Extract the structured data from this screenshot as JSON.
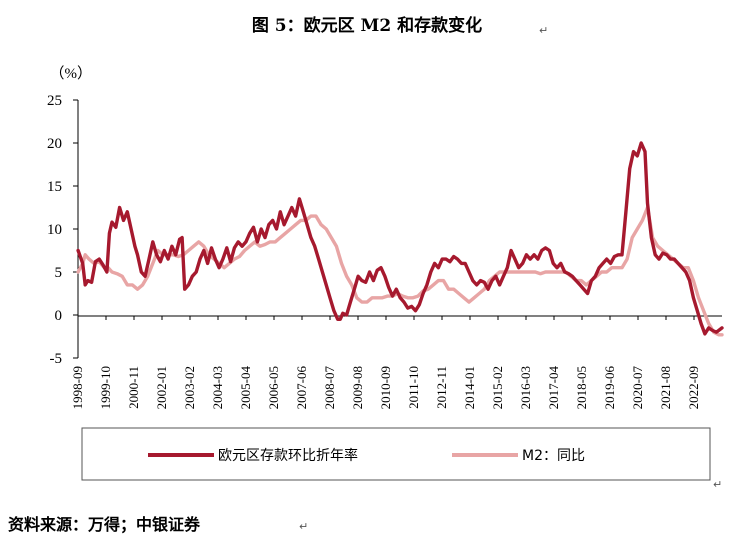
{
  "title": "图 5：欧元区 M2 和存款变化",
  "unit_label": "（%）",
  "source": "资料来源：万得；中银证券",
  "colors": {
    "series1": "#A6192E",
    "series2": "#E8A5A5",
    "axis": "#000000",
    "legend_border": "#555555"
  },
  "chart_data": {
    "type": "line",
    "ylim": [
      -5,
      25
    ],
    "yticks": [
      25,
      20,
      15,
      10,
      5,
      0,
      -5
    ],
    "xlim": [
      1998.667,
      2023.92
    ],
    "xtick_labels": [
      "1998-09",
      "1999-10",
      "2000-11",
      "2002-01",
      "2003-02",
      "2004-03",
      "2005-04",
      "2006-05",
      "2007-06",
      "2008-07",
      "2009-08",
      "2010-09",
      "2011-10",
      "2012-11",
      "2014-01",
      "2015-02",
      "2016-03",
      "2017-04",
      "2018-05",
      "2019-06",
      "2020-07",
      "2021-08",
      "2022-09"
    ],
    "legend_position": "bottom",
    "series": [
      {
        "name": "欧元区存款环比折年率",
        "points": [
          [
            1998.67,
            7.5
          ],
          [
            1998.85,
            6
          ],
          [
            1998.95,
            3.5
          ],
          [
            1999.05,
            4
          ],
          [
            1999.2,
            3.8
          ],
          [
            1999.35,
            6.2
          ],
          [
            1999.5,
            6.5
          ],
          [
            1999.65,
            5.8
          ],
          [
            1999.8,
            5
          ],
          [
            1999.9,
            9.5
          ],
          [
            2000.0,
            10.8
          ],
          [
            2000.15,
            10.2
          ],
          [
            2000.3,
            12.5
          ],
          [
            2000.45,
            11
          ],
          [
            2000.6,
            12
          ],
          [
            2000.75,
            10
          ],
          [
            2000.9,
            8
          ],
          [
            2001.0,
            7
          ],
          [
            2001.15,
            5
          ],
          [
            2001.3,
            4.5
          ],
          [
            2001.45,
            6.5
          ],
          [
            2001.6,
            8.5
          ],
          [
            2001.75,
            7
          ],
          [
            2001.9,
            6.2
          ],
          [
            2002.05,
            7.5
          ],
          [
            2002.2,
            6.5
          ],
          [
            2002.35,
            8
          ],
          [
            2002.5,
            7
          ],
          [
            2002.65,
            8.8
          ],
          [
            2002.75,
            9
          ],
          [
            2002.85,
            3
          ],
          [
            2003.0,
            3.5
          ],
          [
            2003.15,
            4.5
          ],
          [
            2003.3,
            5
          ],
          [
            2003.45,
            6.5
          ],
          [
            2003.6,
            7.5
          ],
          [
            2003.75,
            6
          ],
          [
            2003.9,
            7.8
          ],
          [
            2004.05,
            6.5
          ],
          [
            2004.2,
            5.5
          ],
          [
            2004.35,
            6.5
          ],
          [
            2004.5,
            7.8
          ],
          [
            2004.65,
            6.2
          ],
          [
            2004.8,
            7.8
          ],
          [
            2004.95,
            8.5
          ],
          [
            2005.1,
            8
          ],
          [
            2005.25,
            8.5
          ],
          [
            2005.4,
            9.5
          ],
          [
            2005.55,
            10.2
          ],
          [
            2005.7,
            8.5
          ],
          [
            2005.85,
            10
          ],
          [
            2006.0,
            9
          ],
          [
            2006.15,
            10.5
          ],
          [
            2006.3,
            11
          ],
          [
            2006.45,
            10
          ],
          [
            2006.6,
            12
          ],
          [
            2006.75,
            10.5
          ],
          [
            2006.9,
            11.5
          ],
          [
            2007.05,
            12.5
          ],
          [
            2007.2,
            11.5
          ],
          [
            2007.35,
            13.5
          ],
          [
            2007.5,
            12
          ],
          [
            2007.65,
            10.5
          ],
          [
            2007.8,
            9
          ],
          [
            2007.95,
            8
          ],
          [
            2008.1,
            6.5
          ],
          [
            2008.25,
            5
          ],
          [
            2008.4,
            3.5
          ],
          [
            2008.55,
            2
          ],
          [
            2008.7,
            0.5
          ],
          [
            2008.85,
            -0.5
          ],
          [
            2008.95,
            -0.5
          ],
          [
            2009.05,
            0.2
          ],
          [
            2009.2,
            0
          ],
          [
            2009.35,
            1.5
          ],
          [
            2009.5,
            3
          ],
          [
            2009.65,
            4.5
          ],
          [
            2009.8,
            4
          ],
          [
            2009.95,
            3.8
          ],
          [
            2010.1,
            5
          ],
          [
            2010.25,
            4
          ],
          [
            2010.4,
            5.2
          ],
          [
            2010.55,
            5.5
          ],
          [
            2010.7,
            4.5
          ],
          [
            2010.85,
            3.2
          ],
          [
            2011.0,
            2.2
          ],
          [
            2011.15,
            3
          ],
          [
            2011.3,
            2
          ],
          [
            2011.45,
            1.5
          ],
          [
            2011.6,
            0.8
          ],
          [
            2011.75,
            1
          ],
          [
            2011.9,
            0.5
          ],
          [
            2012.05,
            1.2
          ],
          [
            2012.2,
            2.5
          ],
          [
            2012.35,
            3.5
          ],
          [
            2012.5,
            5
          ],
          [
            2012.65,
            6
          ],
          [
            2012.8,
            5.5
          ],
          [
            2012.95,
            6.5
          ],
          [
            2013.1,
            6.5
          ],
          [
            2013.25,
            6.2
          ],
          [
            2013.4,
            6.8
          ],
          [
            2013.55,
            6.5
          ],
          [
            2013.7,
            6
          ],
          [
            2013.85,
            6
          ],
          [
            2014.0,
            5
          ],
          [
            2014.15,
            4
          ],
          [
            2014.3,
            3.5
          ],
          [
            2014.45,
            4
          ],
          [
            2014.6,
            3.8
          ],
          [
            2014.75,
            3
          ],
          [
            2014.9,
            4
          ],
          [
            2015.05,
            4.5
          ],
          [
            2015.2,
            3.5
          ],
          [
            2015.35,
            4.5
          ],
          [
            2015.5,
            5.5
          ],
          [
            2015.65,
            7.5
          ],
          [
            2015.8,
            6.5
          ],
          [
            2015.95,
            5.5
          ],
          [
            2016.1,
            6
          ],
          [
            2016.25,
            7
          ],
          [
            2016.4,
            6.5
          ],
          [
            2016.55,
            7
          ],
          [
            2016.7,
            6.5
          ],
          [
            2016.85,
            7.5
          ],
          [
            2017.0,
            7.8
          ],
          [
            2017.15,
            7.5
          ],
          [
            2017.3,
            6
          ],
          [
            2017.45,
            5.5
          ],
          [
            2017.6,
            6
          ],
          [
            2017.75,
            5
          ],
          [
            2017.9,
            4.8
          ],
          [
            2018.05,
            4.5
          ],
          [
            2018.2,
            4
          ],
          [
            2018.35,
            3.5
          ],
          [
            2018.5,
            3
          ],
          [
            2018.65,
            2.5
          ],
          [
            2018.8,
            4
          ],
          [
            2018.95,
            4.5
          ],
          [
            2019.1,
            5.5
          ],
          [
            2019.25,
            6
          ],
          [
            2019.4,
            6.5
          ],
          [
            2019.55,
            6
          ],
          [
            2019.7,
            6.8
          ],
          [
            2019.85,
            7
          ],
          [
            2020.0,
            7
          ],
          [
            2020.15,
            12
          ],
          [
            2020.3,
            17
          ],
          [
            2020.45,
            19
          ],
          [
            2020.6,
            18.5
          ],
          [
            2020.75,
            20
          ],
          [
            2020.9,
            19
          ],
          [
            2021.0,
            13
          ],
          [
            2021.15,
            9
          ],
          [
            2021.3,
            7
          ],
          [
            2021.45,
            6.5
          ],
          [
            2021.6,
            7.2
          ],
          [
            2021.75,
            7
          ],
          [
            2021.9,
            6.5
          ],
          [
            2022.05,
            6.5
          ],
          [
            2022.2,
            6
          ],
          [
            2022.35,
            5.5
          ],
          [
            2022.5,
            5
          ],
          [
            2022.65,
            4
          ],
          [
            2022.8,
            2
          ],
          [
            2022.95,
            0.5
          ],
          [
            2023.1,
            -1
          ],
          [
            2023.25,
            -2.2
          ],
          [
            2023.4,
            -1.5
          ],
          [
            2023.55,
            -1.8
          ],
          [
            2023.7,
            -2
          ],
          [
            2023.92,
            -1.5
          ]
        ]
      },
      {
        "name": "M2：同比",
        "points": [
          [
            1998.67,
            5
          ],
          [
            1998.85,
            6
          ],
          [
            1998.95,
            7
          ],
          [
            1999.1,
            6.5
          ],
          [
            1999.3,
            6
          ],
          [
            1999.5,
            6.2
          ],
          [
            1999.7,
            5.5
          ],
          [
            1999.85,
            5.5
          ],
          [
            2000.0,
            5
          ],
          [
            2000.2,
            4.8
          ],
          [
            2000.4,
            4.5
          ],
          [
            2000.6,
            3.5
          ],
          [
            2000.8,
            3.5
          ],
          [
            2001.0,
            3
          ],
          [
            2001.2,
            3.5
          ],
          [
            2001.4,
            4.5
          ],
          [
            2001.6,
            6
          ],
          [
            2001.8,
            7.5
          ],
          [
            2002.0,
            7
          ],
          [
            2002.2,
            7
          ],
          [
            2002.4,
            7
          ],
          [
            2002.6,
            6.8
          ],
          [
            2002.8,
            7
          ],
          [
            2003.0,
            7.5
          ],
          [
            2003.2,
            8
          ],
          [
            2003.4,
            8.5
          ],
          [
            2003.6,
            8
          ],
          [
            2003.8,
            7
          ],
          [
            2004.0,
            6.5
          ],
          [
            2004.2,
            6
          ],
          [
            2004.4,
            5.5
          ],
          [
            2004.6,
            6
          ],
          [
            2004.8,
            6.5
          ],
          [
            2005.0,
            6.8
          ],
          [
            2005.2,
            7.5
          ],
          [
            2005.4,
            8
          ],
          [
            2005.6,
            8.5
          ],
          [
            2005.8,
            8
          ],
          [
            2006.0,
            8.2
          ],
          [
            2006.2,
            8.5
          ],
          [
            2006.4,
            8.5
          ],
          [
            2006.6,
            9
          ],
          [
            2006.8,
            9.5
          ],
          [
            2007.0,
            10
          ],
          [
            2007.2,
            10.5
          ],
          [
            2007.4,
            11
          ],
          [
            2007.6,
            11
          ],
          [
            2007.8,
            11.5
          ],
          [
            2008.0,
            11.5
          ],
          [
            2008.2,
            10.5
          ],
          [
            2008.4,
            10
          ],
          [
            2008.6,
            9
          ],
          [
            2008.8,
            8
          ],
          [
            2009.0,
            6
          ],
          [
            2009.2,
            4.5
          ],
          [
            2009.4,
            3.5
          ],
          [
            2009.6,
            2
          ],
          [
            2009.8,
            1.5
          ],
          [
            2010.0,
            1.5
          ],
          [
            2010.2,
            2
          ],
          [
            2010.4,
            2
          ],
          [
            2010.6,
            2
          ],
          [
            2010.8,
            2.2
          ],
          [
            2011.0,
            2.2
          ],
          [
            2011.2,
            2.5
          ],
          [
            2011.4,
            2.2
          ],
          [
            2011.6,
            2
          ],
          [
            2011.8,
            2
          ],
          [
            2012.0,
            2.2
          ],
          [
            2012.2,
            2.8
          ],
          [
            2012.4,
            3
          ],
          [
            2012.6,
            3.5
          ],
          [
            2012.8,
            4
          ],
          [
            2013.0,
            4
          ],
          [
            2013.2,
            3
          ],
          [
            2013.4,
            3
          ],
          [
            2013.6,
            2.5
          ],
          [
            2013.8,
            2
          ],
          [
            2014.0,
            1.5
          ],
          [
            2014.2,
            2
          ],
          [
            2014.4,
            2.5
          ],
          [
            2014.6,
            3
          ],
          [
            2014.8,
            4
          ],
          [
            2015.0,
            4.5
          ],
          [
            2015.2,
            5
          ],
          [
            2015.4,
            5
          ],
          [
            2015.6,
            5
          ],
          [
            2015.8,
            5
          ],
          [
            2016.0,
            5
          ],
          [
            2016.2,
            5
          ],
          [
            2016.4,
            5
          ],
          [
            2016.6,
            5
          ],
          [
            2016.8,
            4.8
          ],
          [
            2017.0,
            5
          ],
          [
            2017.2,
            5
          ],
          [
            2017.4,
            5
          ],
          [
            2017.6,
            5
          ],
          [
            2017.8,
            5
          ],
          [
            2018.0,
            4.5
          ],
          [
            2018.2,
            4
          ],
          [
            2018.4,
            4
          ],
          [
            2018.6,
            3.5
          ],
          [
            2018.8,
            4
          ],
          [
            2019.0,
            4.5
          ],
          [
            2019.2,
            5
          ],
          [
            2019.4,
            5
          ],
          [
            2019.6,
            5.5
          ],
          [
            2019.8,
            5.5
          ],
          [
            2020.0,
            5.5
          ],
          [
            2020.2,
            6.5
          ],
          [
            2020.4,
            9
          ],
          [
            2020.6,
            10
          ],
          [
            2020.8,
            11
          ],
          [
            2021.0,
            12.5
          ],
          [
            2021.2,
            9
          ],
          [
            2021.4,
            8
          ],
          [
            2021.6,
            7.5
          ],
          [
            2021.8,
            7
          ],
          [
            2022.0,
            6.5
          ],
          [
            2022.2,
            6
          ],
          [
            2022.4,
            5.5
          ],
          [
            2022.6,
            5.5
          ],
          [
            2022.8,
            4
          ],
          [
            2023.0,
            2
          ],
          [
            2023.2,
            0.5
          ],
          [
            2023.4,
            -1
          ],
          [
            2023.6,
            -2
          ],
          [
            2023.8,
            -2.3
          ],
          [
            2023.92,
            -2.3
          ]
        ]
      }
    ]
  }
}
